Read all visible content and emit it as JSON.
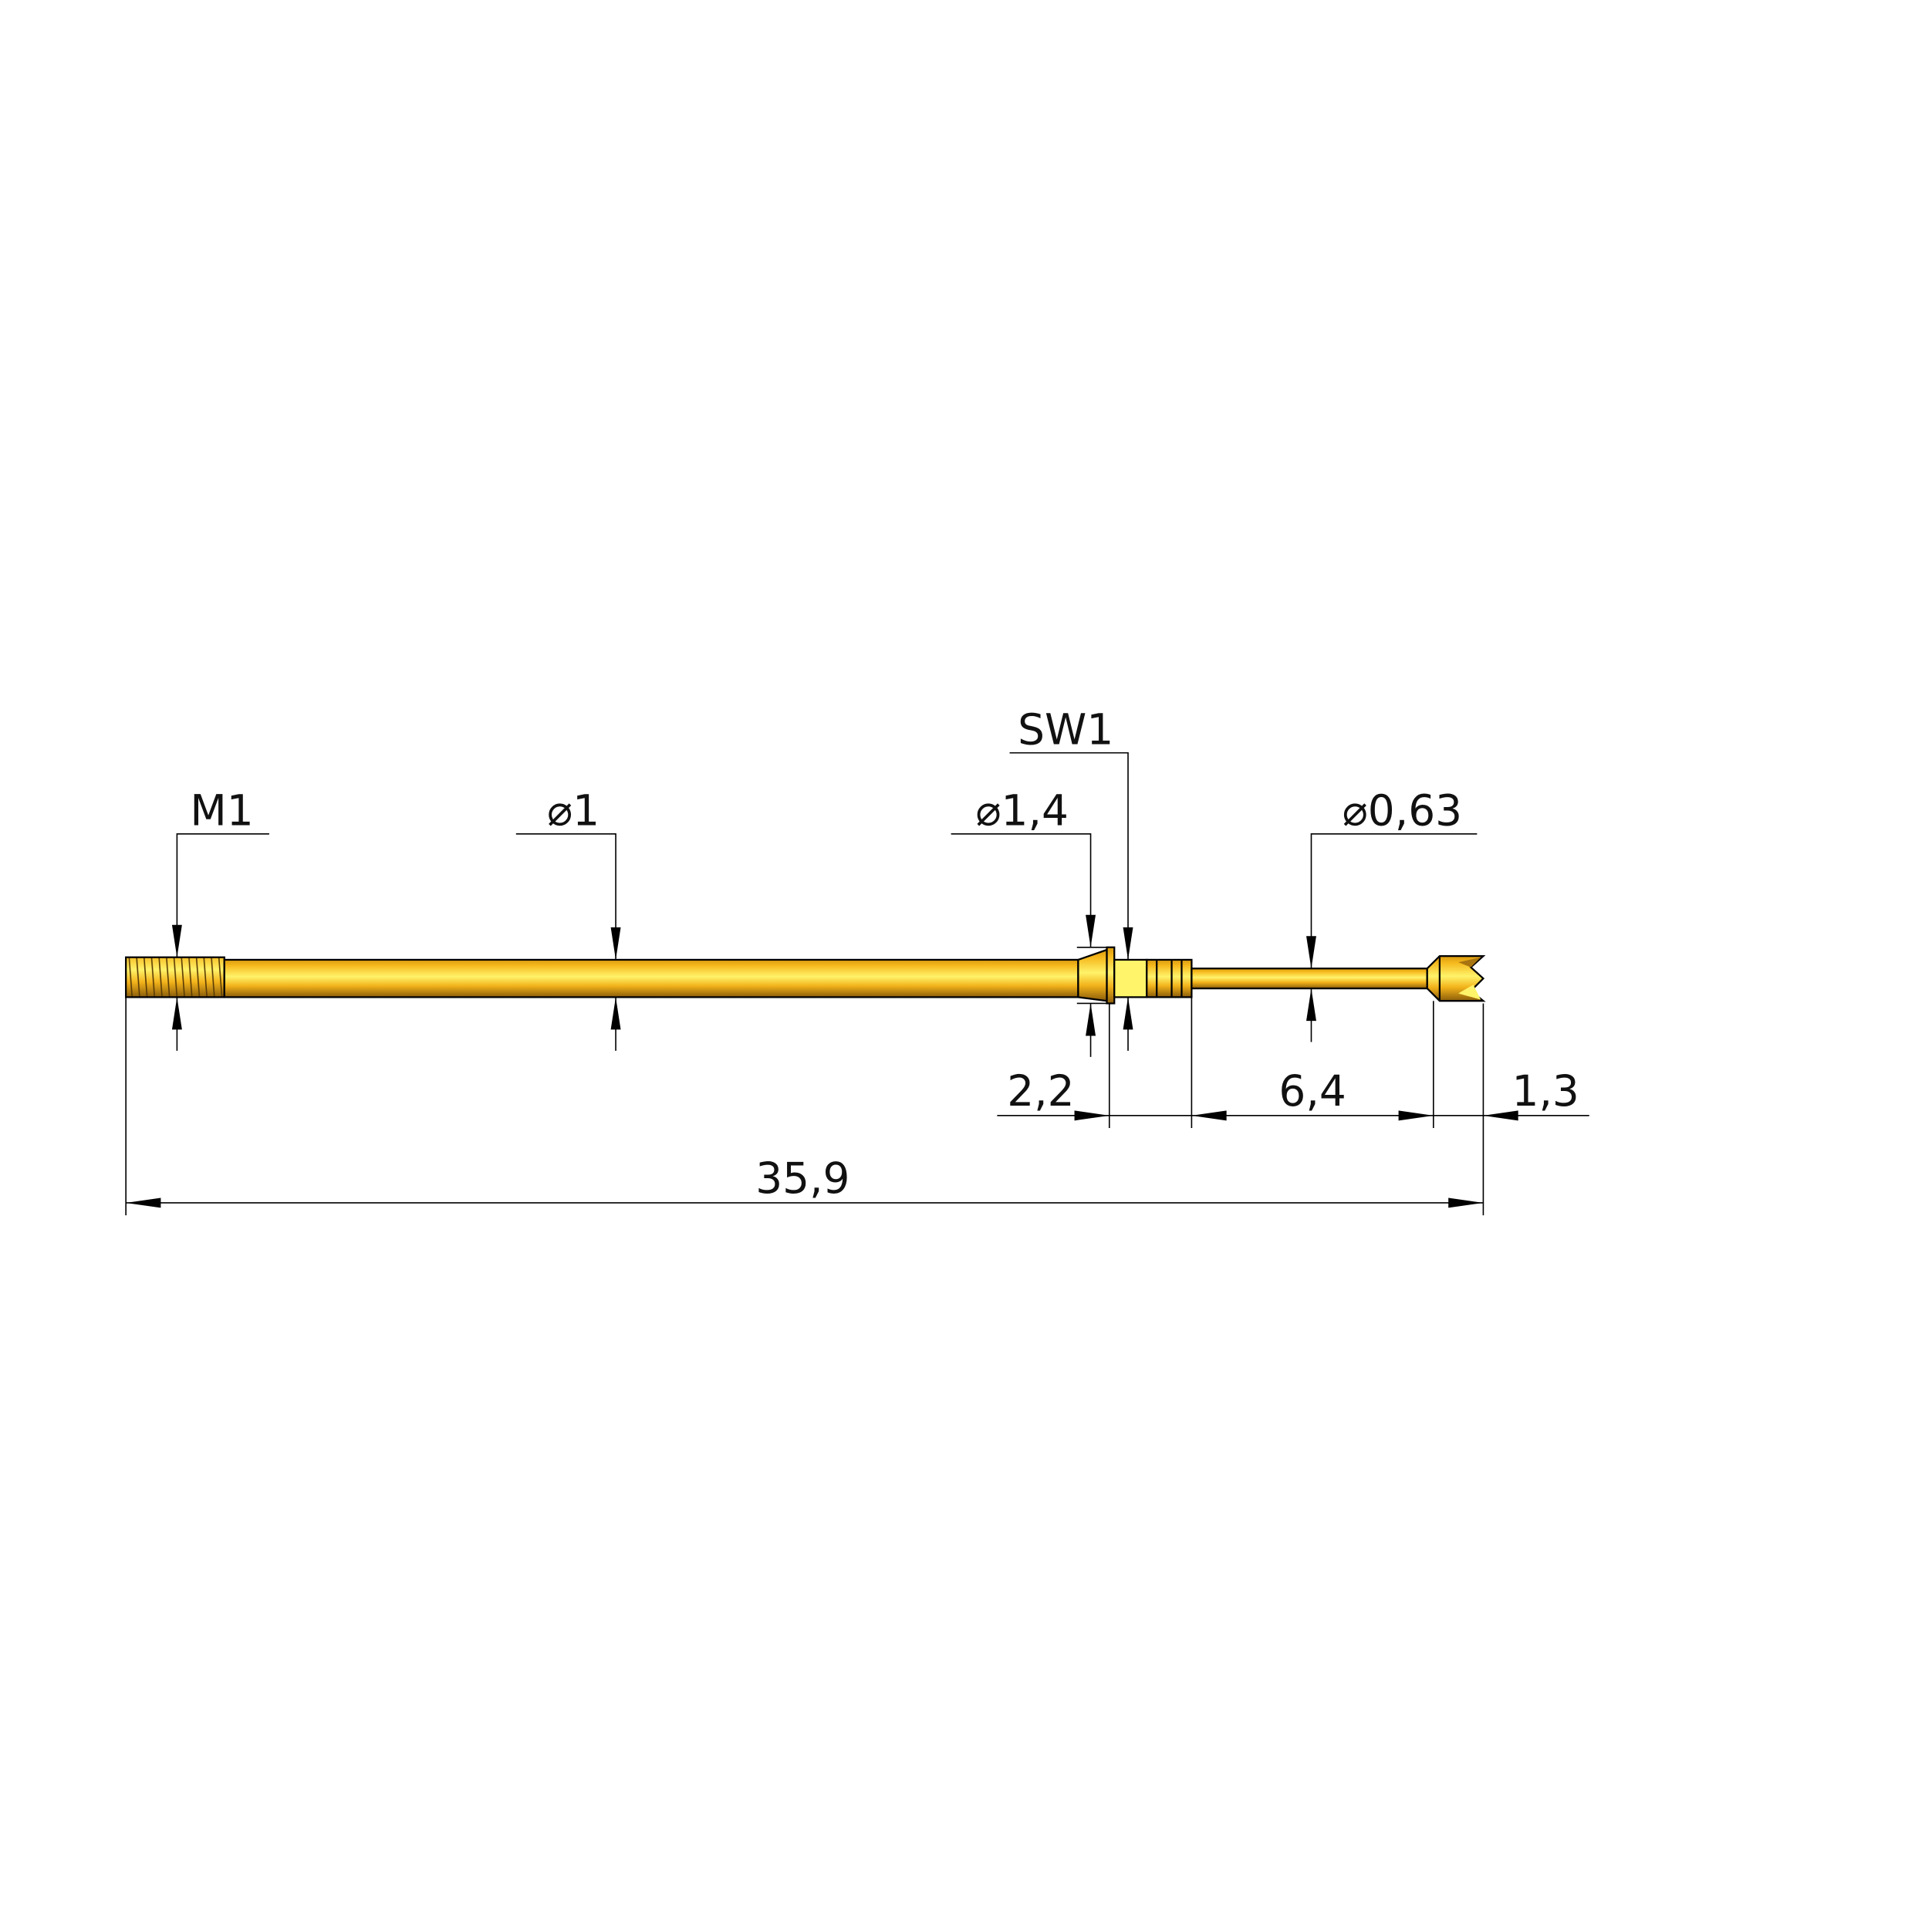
{
  "colors": {
    "gold": "#f5b81c",
    "highlight": "#fff36a",
    "shadow": "#a87410",
    "hex_face": "#fff46a"
  },
  "dimensions": {
    "thread": "M1",
    "shaft_diameter": "⌀1",
    "collar_diameter": "⌀1,4",
    "wrench_size": "SW1",
    "plunger_diameter": "⌀0,63",
    "collar_length": "2,2",
    "plunger_length": "6,4",
    "tip_length": "1,3",
    "overall_length": "35,9"
  }
}
